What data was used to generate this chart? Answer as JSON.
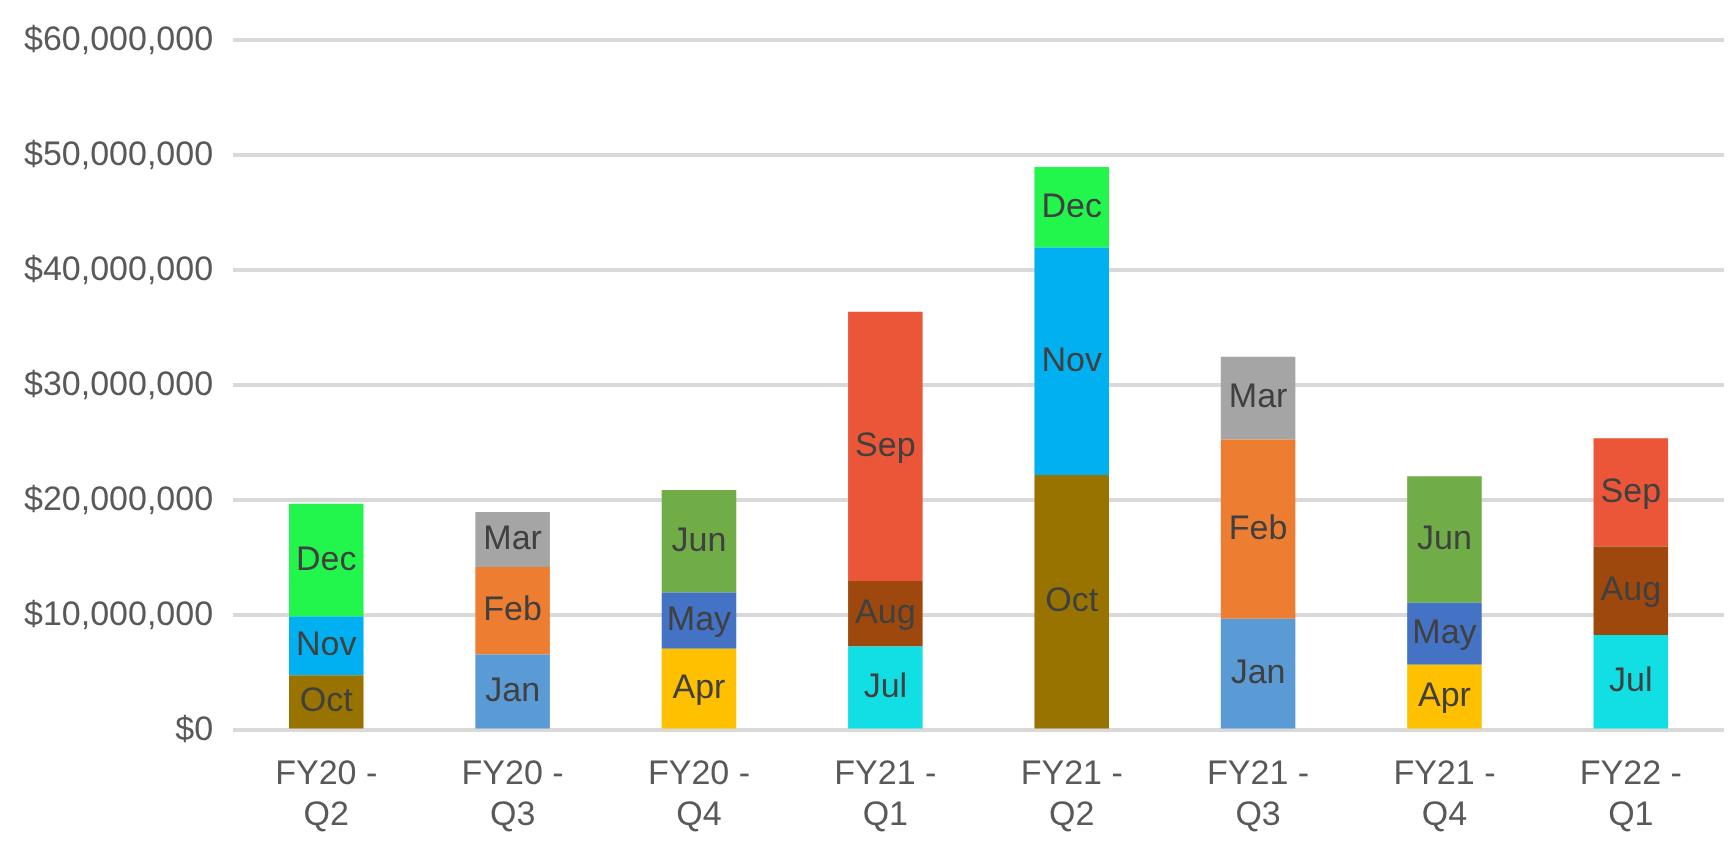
{
  "chart_data": {
    "type": "bar",
    "stacked": true,
    "categories": [
      "FY20 - Q2",
      "FY20 - Q3",
      "FY20 - Q4",
      "FY21 - Q1",
      "FY21 - Q2",
      "FY21 - Q3",
      "FY21 - Q4",
      "FY22 - Q1"
    ],
    "series": [
      {
        "name": "Jul",
        "color": "#12dfe3",
        "values": [
          null,
          null,
          null,
          7300000,
          null,
          null,
          null,
          8300000
        ]
      },
      {
        "name": "Aug",
        "color": "#9e480e",
        "values": [
          null,
          null,
          null,
          5700000,
          null,
          null,
          null,
          7700000
        ]
      },
      {
        "name": "Sep",
        "color": "#eb5538",
        "values": [
          null,
          null,
          null,
          23400000,
          null,
          null,
          null,
          9400000
        ]
      },
      {
        "name": "Oct",
        "color": "#997300",
        "values": [
          4800000,
          null,
          null,
          null,
          22200000,
          null,
          null,
          null
        ]
      },
      {
        "name": "Nov",
        "color": "#00b0f0",
        "values": [
          5100000,
          null,
          null,
          null,
          19800000,
          null,
          null,
          null
        ]
      },
      {
        "name": "Dec",
        "color": "#22f54c",
        "values": [
          9800000,
          null,
          null,
          null,
          7000000,
          null,
          null,
          null
        ]
      },
      {
        "name": "Jan",
        "color": "#5b9bd5",
        "values": [
          null,
          6600000,
          null,
          null,
          null,
          9700000,
          null,
          null
        ]
      },
      {
        "name": "Feb",
        "color": "#ed7d31",
        "values": [
          null,
          7600000,
          null,
          null,
          null,
          15600000,
          null,
          null
        ]
      },
      {
        "name": "Mar",
        "color": "#a5a5a5",
        "values": [
          null,
          4800000,
          null,
          null,
          null,
          7200000,
          null,
          null
        ]
      },
      {
        "name": "Apr",
        "color": "#ffc000",
        "values": [
          null,
          null,
          7100000,
          null,
          null,
          null,
          5700000,
          null
        ]
      },
      {
        "name": "May",
        "color": "#4472c4",
        "values": [
          null,
          null,
          4900000,
          null,
          null,
          null,
          5400000,
          null
        ]
      },
      {
        "name": "Jun",
        "color": "#70ad47",
        "values": [
          null,
          null,
          8900000,
          null,
          null,
          null,
          11000000,
          null
        ]
      }
    ],
    "ylim": [
      0,
      60000000
    ],
    "yticks": [
      {
        "value": 0,
        "label": "$0"
      },
      {
        "value": 10000000,
        "label": "$10,000,000"
      },
      {
        "value": 20000000,
        "label": "$20,000,000"
      },
      {
        "value": 30000000,
        "label": "$30,000,000"
      },
      {
        "value": 40000000,
        "label": "$40,000,000"
      },
      {
        "value": 50000000,
        "label": "$50,000,000"
      },
      {
        "value": 60000000,
        "label": "$60,000,000"
      }
    ],
    "grid": "y",
    "legend": false
  }
}
